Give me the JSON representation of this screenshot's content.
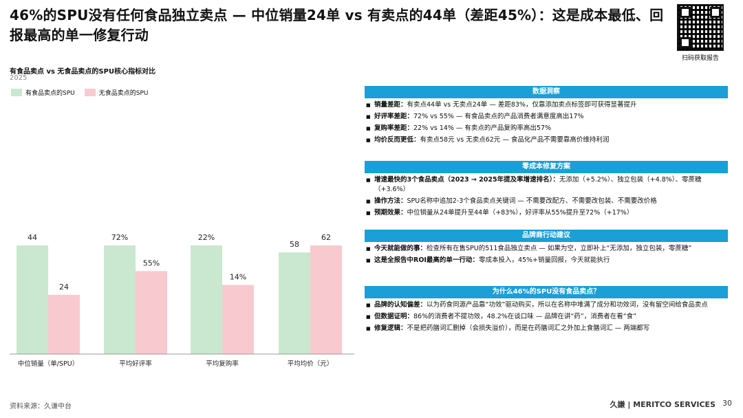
{
  "title": "46%的SPU没有任何食品独立卖点 — 中位销量24单 vs 有卖点的44单（差距45%）：这是成本最低、回报最高的单一修复行动",
  "qr": {
    "label": "扫码获取报告"
  },
  "chart_subtitle": "有食品卖点 vs 无食品卖点的SPU核心指标对比",
  "chart_year": "2025",
  "colors": {
    "green": "#c9e8cf",
    "pink": "#f9c9d0",
    "accent": "#1a9fd6"
  },
  "chart_data": {
    "type": "bar",
    "categories": [
      "中位销量（单/SPU）",
      "平均好评率",
      "平均复购率",
      "平均均价（元）"
    ],
    "series": [
      {
        "name": "有食品卖点的SPU",
        "labels": [
          "44",
          "72%",
          "22%",
          "58"
        ],
        "values": [
          44,
          72,
          22,
          58
        ]
      },
      {
        "name": "无食品卖点的SPU",
        "labels": [
          "24",
          "55%",
          "14%",
          "62"
        ],
        "values": [
          24,
          55,
          14,
          62
        ]
      }
    ],
    "note": "Each category panel has its own scale; bars normalized to the category max"
  },
  "panels": [
    {
      "header": "数据洞察",
      "items": [
        {
          "bold": "销量差距：",
          "text": "有卖点44单 vs 无卖点24单 — 差距83%，仅靠添加卖点标签即可获得显著提升"
        },
        {
          "bold": "好评率差距：",
          "text": "72% vs 55% — 有食品卖点的产品消费者满意度高出17%"
        },
        {
          "bold": "复购率差距：",
          "text": "22% vs 14% — 有卖点的产品复购率高出57%"
        },
        {
          "bold": "均价反而更低：",
          "text": "有卖点58元 vs 无卖点62元 — 食品化产品不需要靠高价维持利润"
        }
      ]
    },
    {
      "header": "零成本修复方案",
      "items": [
        {
          "bold": "增速最快的3个食品卖点（2023 → 2025年提及率增速排名）：",
          "text": "无添加（+5.2%）、独立包装（+4.8%）、零蔗糖（+3.6%）"
        },
        {
          "bold": "操作方法：",
          "text": "SPU名称中追加2-3个食品卖点关键词 — 不需要改配方、不需要改包装、不需要改价格"
        },
        {
          "bold": "预期效果：",
          "text": "中位销量从24单提升至44单（+83%），好评率从55%提升至72%（+17%）"
        }
      ]
    },
    {
      "header": "品牌商行动建议",
      "items": [
        {
          "bold": "今天就能做的事：",
          "text": "检查所有在售SPU的511食品独立卖点 — 如果为空，立即补上“无添加，独立包装，零蔗糖”"
        },
        {
          "bold": "这是全报告中ROI最高的单一行动：",
          "text": "零成本投入，45%+销量回报，今天就能执行"
        }
      ]
    },
    {
      "header": "为什么46%的SPU没有食品卖点？",
      "items": [
        {
          "bold": "品牌的认知偏差：",
          "text": "以为药食同源产品靠“功效”驱动购买，所以在名称中堆满了成分和功效词，没有留空间给食品卖点"
        },
        {
          "bold": "但数据证明：",
          "text": "86%的消费者不提功效，48.2%在谈口味 — 品牌在讲“药”，消费者在看“食”"
        },
        {
          "bold": "修复逻辑：",
          "text": "不是把药膳词汇删掉（会损失溢价），而是在药膳词汇之外加上食膳词汇 — 两端都写"
        }
      ]
    }
  ],
  "footer": {
    "source": "资料来源：久谦中台",
    "brand": "久謙 | MERITCO SERVICES",
    "page": "30"
  }
}
